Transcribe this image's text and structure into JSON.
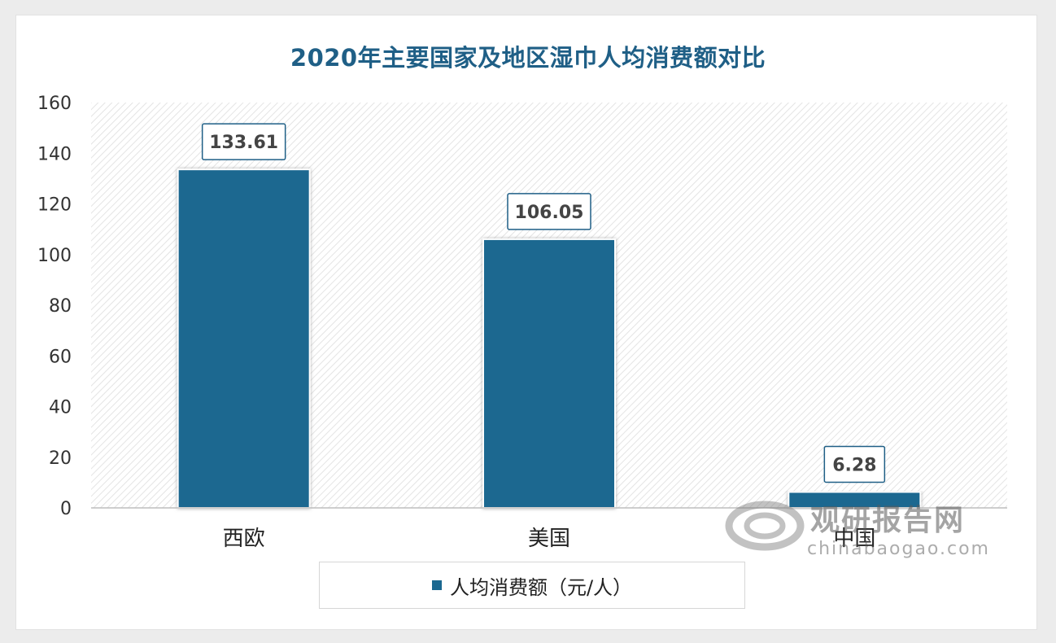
{
  "chart_data": {
    "type": "bar",
    "title": "2020年主要国家及地区湿巾人均消费额对比",
    "categories": [
      "西欧",
      "美国",
      "中国"
    ],
    "series": [
      {
        "name": "人均消费额（元/人）",
        "values": [
          133.61,
          106.05,
          6.28
        ]
      }
    ],
    "data_labels": [
      "133.61",
      "106.05",
      "6.28"
    ],
    "ylim": [
      0,
      160
    ],
    "yticks": [
      0,
      20,
      40,
      60,
      80,
      100,
      120,
      140,
      160
    ],
    "grid": false,
    "legend_position": "bottom",
    "colors": {
      "bar": "#1b6890",
      "title": "#1f5f86"
    }
  },
  "watermark": {
    "name_cn": "观研报告网",
    "url": "chinabaogao.com"
  }
}
